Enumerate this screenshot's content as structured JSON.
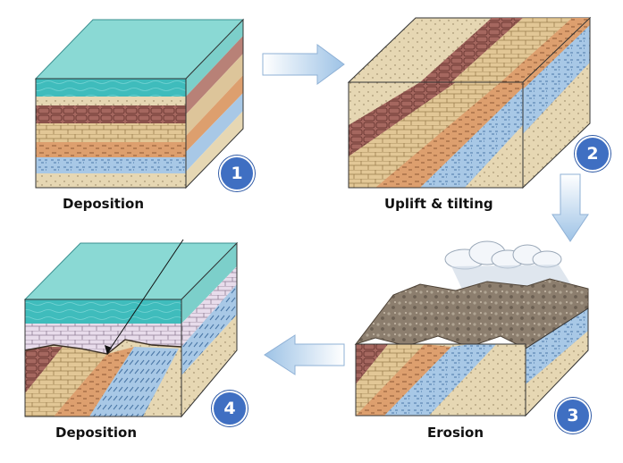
{
  "captions": {
    "step1": "Deposition",
    "step2": "Uplift & tilting",
    "step3": "Erosion",
    "step4": "Deposition"
  },
  "badges": {
    "step1": "1",
    "step2": "2",
    "step3": "3",
    "step4": "4"
  },
  "colors": {
    "water": "#3fbcbc",
    "badge": "#3f6fc2",
    "arrow": "#9ec3e6",
    "brick_red": "#a5675f",
    "tan": "#e2c796",
    "orange": "#dd9f6e",
    "blue_layer": "#a8c8e6",
    "sand": "#e6d7b3",
    "lilac_layer": "#e8dceb",
    "rock": "#8c7e6e"
  }
}
